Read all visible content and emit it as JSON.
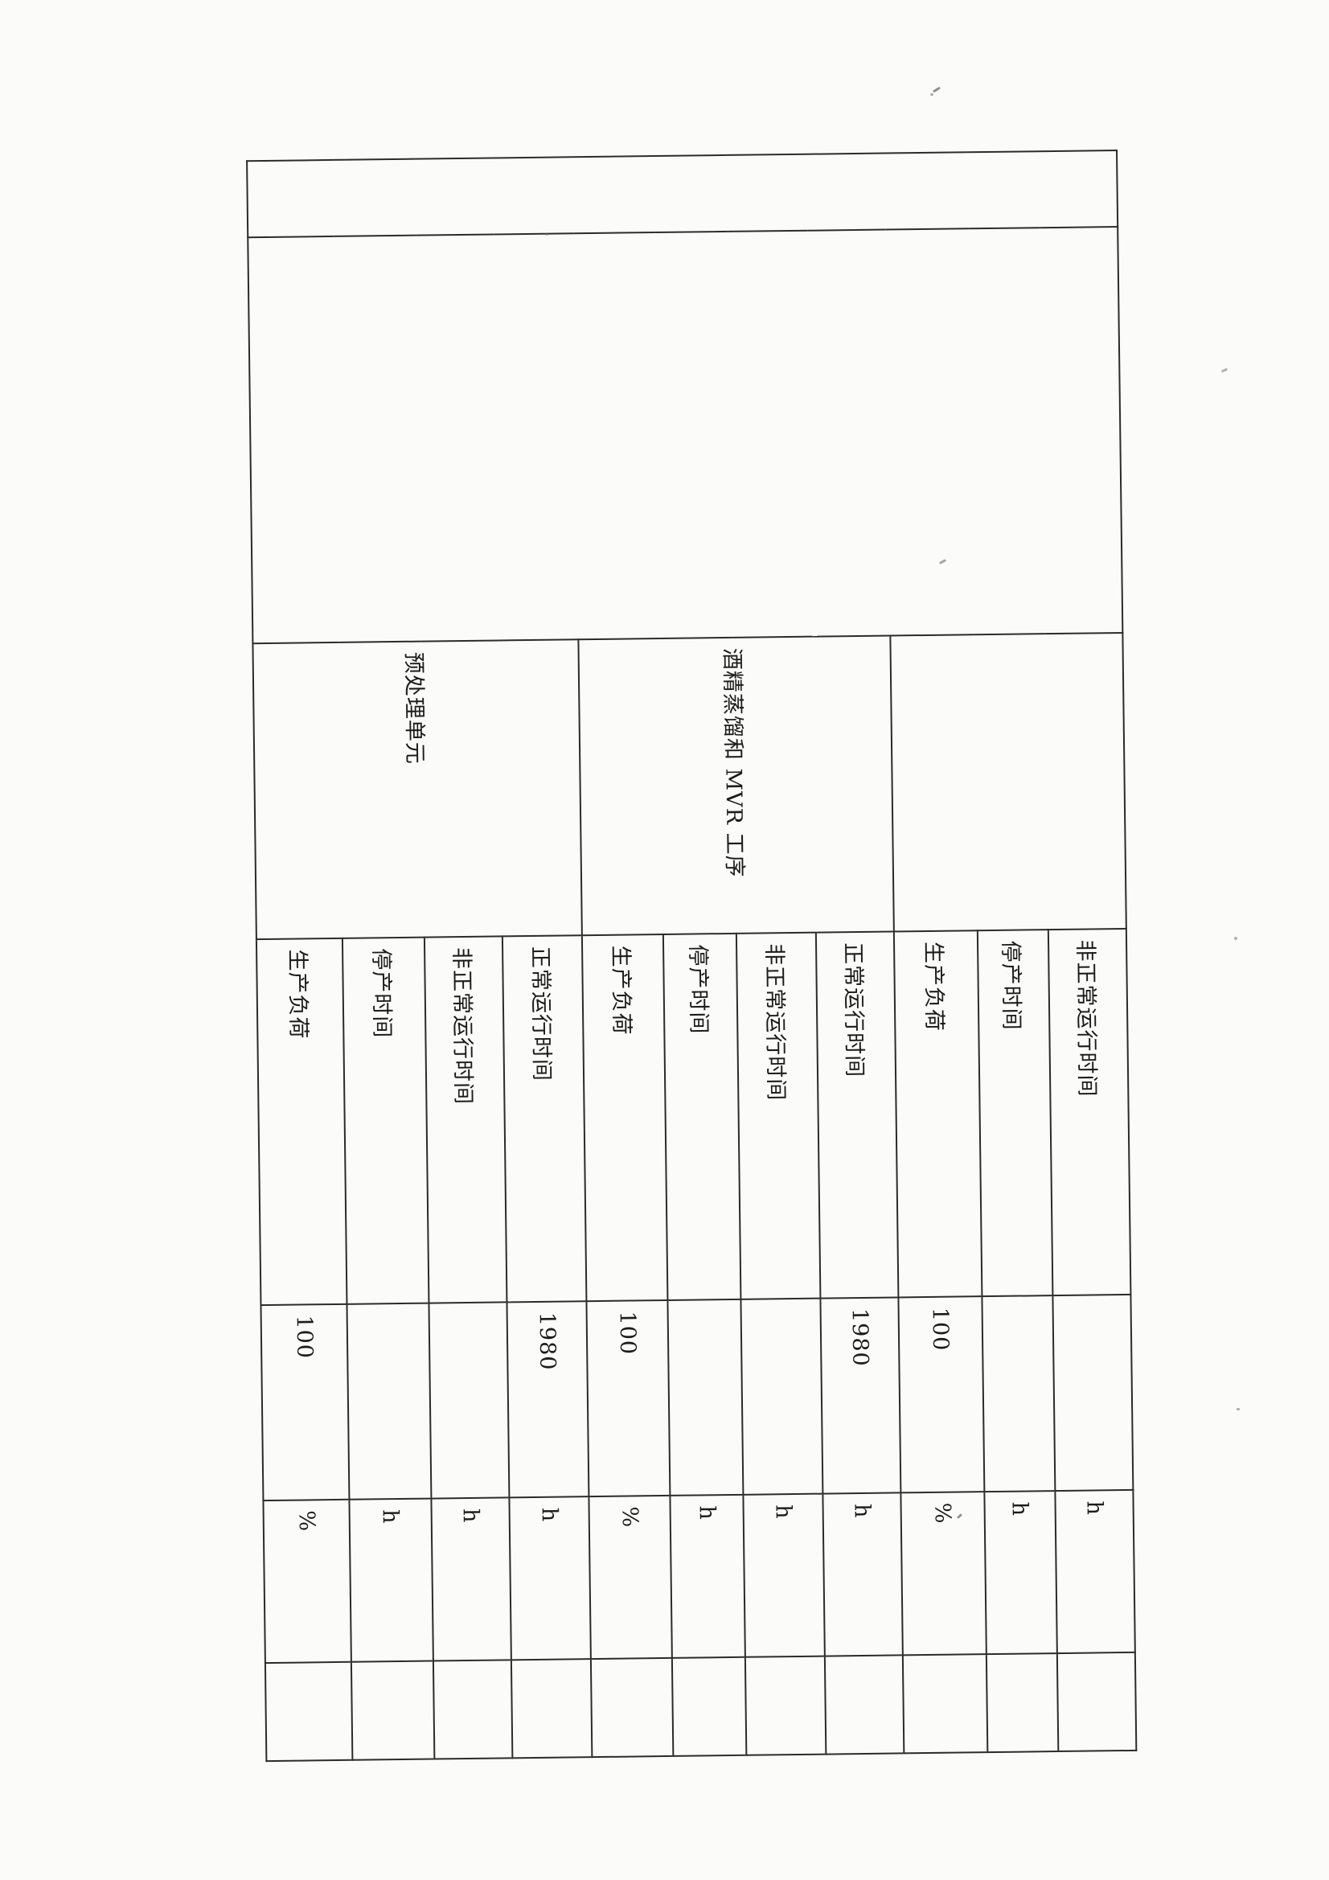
{
  "table": {
    "groups": [
      {
        "label": ""
      },
      {
        "label": "酒精蒸馏和 MVR 工序"
      },
      {
        "label": "预处理单元"
      }
    ],
    "rows": [
      {
        "label": "非正常运行时间",
        "value": "",
        "unit": "h"
      },
      {
        "label": "停产时间",
        "value": "",
        "unit": "h"
      },
      {
        "label": "生产负荷",
        "value": "100",
        "unit": "%"
      },
      {
        "label": "正常运行时间",
        "value": "1980",
        "unit": "h"
      },
      {
        "label": "非正常运行时间",
        "value": "",
        "unit": "h"
      },
      {
        "label": "停产时间",
        "value": "",
        "unit": "h"
      },
      {
        "label": "生产负荷",
        "value": "100",
        "unit": "%"
      },
      {
        "label": "正常运行时间",
        "value": "1980",
        "unit": "h"
      },
      {
        "label": "非正常运行时间",
        "value": "",
        "unit": "h"
      },
      {
        "label": "停产时间",
        "value": "",
        "unit": "h"
      },
      {
        "label": "生产负荷",
        "value": "100",
        "unit": "%"
      }
    ]
  }
}
